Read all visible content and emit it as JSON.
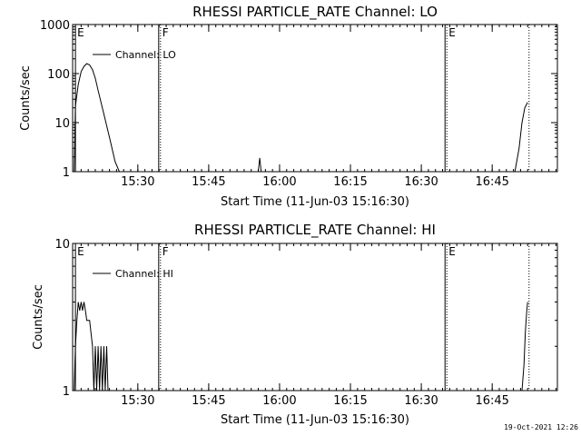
{
  "chart_data": [
    {
      "type": "line",
      "title": "RHESSI PARTICLE_RATE Channel: LO",
      "xlabel": "Start Time (11-Jun-03 15:16:30)",
      "ylabel": "Counts/sec",
      "yscale": "log",
      "ylim": [
        1,
        1000
      ],
      "yticks": [
        {
          "v": 1,
          "label": "1"
        },
        {
          "v": 10,
          "label": "10"
        },
        {
          "v": 100,
          "label": "100"
        },
        {
          "v": 1000,
          "label": "1000"
        }
      ],
      "xlim_minutes": [
        15.27,
        16.98
      ],
      "xticks": [
        {
          "v": 15.5,
          "label": "15:30"
        },
        {
          "v": 15.75,
          "label": "15:45"
        },
        {
          "v": 16.0,
          "label": "16:00"
        },
        {
          "v": 16.25,
          "label": "16:15"
        },
        {
          "v": 16.5,
          "label": "16:30"
        },
        {
          "v": 16.75,
          "label": "16:45"
        }
      ],
      "legend": {
        "placement": "top-left",
        "label": "Channel: LO"
      },
      "markers": [
        {
          "x": 15.28,
          "label": "E",
          "style": "solid"
        },
        {
          "x": 15.58,
          "label": "F",
          "style": "dotted"
        },
        {
          "x": 16.59,
          "label": "E",
          "style": "dotted"
        },
        {
          "x": 16.88,
          "label": "",
          "style": "dotted"
        }
      ],
      "series": [
        {
          "points": [
            [
              15.275,
              1
            ],
            [
              15.28,
              22
            ],
            [
              15.29,
              60
            ],
            [
              15.3,
              110
            ],
            [
              15.31,
              140
            ],
            [
              15.32,
              160
            ],
            [
              15.33,
              150
            ],
            [
              15.34,
              120
            ],
            [
              15.35,
              80
            ],
            [
              15.36,
              45
            ],
            [
              15.38,
              15
            ],
            [
              15.4,
              5
            ],
            [
              15.42,
              1.6
            ],
            [
              15.435,
              1
            ]
          ]
        },
        {
          "points": [
            [
              15.925,
              1
            ],
            [
              15.93,
              1.9
            ],
            [
              15.935,
              1
            ]
          ]
        },
        {
          "points": [
            [
              16.83,
              1
            ],
            [
              16.845,
              3
            ],
            [
              16.855,
              10
            ],
            [
              16.865,
              20
            ],
            [
              16.875,
              26
            ]
          ]
        }
      ]
    },
    {
      "type": "line",
      "title": "RHESSI PARTICLE_RATE Channel: HI",
      "xlabel": "Start Time (11-Jun-03 15:16:30)",
      "ylabel": "Counts/sec",
      "yscale": "log",
      "ylim": [
        1,
        10
      ],
      "yticks": [
        {
          "v": 1,
          "label": "1"
        },
        {
          "v": 10,
          "label": "10"
        }
      ],
      "xlim_minutes": [
        15.27,
        16.98
      ],
      "xticks": [
        {
          "v": 15.5,
          "label": "15:30"
        },
        {
          "v": 15.75,
          "label": "15:45"
        },
        {
          "v": 16.0,
          "label": "16:00"
        },
        {
          "v": 16.25,
          "label": "16:15"
        },
        {
          "v": 16.5,
          "label": "16:30"
        },
        {
          "v": 16.75,
          "label": "16:45"
        }
      ],
      "legend": {
        "placement": "top-left",
        "label": "Channel: HI"
      },
      "markers": [
        {
          "x": 15.28,
          "label": "E",
          "style": "solid"
        },
        {
          "x": 15.58,
          "label": "F",
          "style": "dotted"
        },
        {
          "x": 16.59,
          "label": "E",
          "style": "dotted"
        },
        {
          "x": 16.88,
          "label": "",
          "style": "dotted"
        }
      ],
      "series": [
        {
          "points": [
            [
              15.275,
              1
            ],
            [
              15.28,
              2
            ],
            [
              15.285,
              3
            ],
            [
              15.29,
              4
            ],
            [
              15.295,
              3.5
            ],
            [
              15.3,
              4
            ],
            [
              15.305,
              3.5
            ],
            [
              15.31,
              4
            ],
            [
              15.315,
              3.5
            ],
            [
              15.32,
              3
            ],
            [
              15.33,
              3
            ],
            [
              15.34,
              2
            ],
            [
              15.345,
              1
            ],
            [
              15.35,
              2
            ],
            [
              15.355,
              1
            ],
            [
              15.36,
              2
            ],
            [
              15.365,
              1
            ],
            [
              15.37,
              2
            ],
            [
              15.375,
              1
            ],
            [
              15.38,
              2
            ],
            [
              15.385,
              1
            ],
            [
              15.39,
              2
            ],
            [
              15.395,
              1
            ]
          ]
        },
        {
          "points": [
            [
              16.855,
              1
            ],
            [
              16.862,
              1.5
            ],
            [
              16.867,
              2.5
            ],
            [
              16.872,
              3.5
            ],
            [
              16.875,
              4
            ]
          ]
        }
      ]
    }
  ],
  "footer": {
    "timestamp": "19-Oct-2021 12:26"
  }
}
